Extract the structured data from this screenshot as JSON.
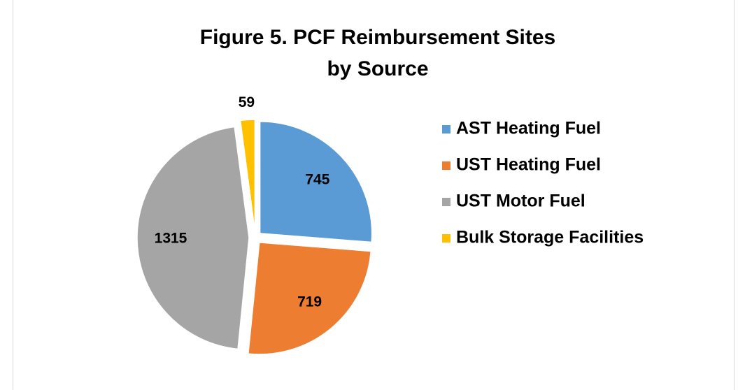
{
  "chart_data": {
    "type": "pie",
    "title": "Figure 5. PCF Reimbursement Sites",
    "subtitle": "by Source",
    "categories": [
      "AST Heating Fuel",
      "UST Heating Fuel",
      "UST Motor Fuel",
      "Bulk Storage Facilities"
    ],
    "values": [
      745,
      719,
      1315,
      59
    ],
    "colors": [
      "#5b9bd5",
      "#ed7d31",
      "#a5a5a5",
      "#ffc000"
    ],
    "legend": "right"
  }
}
